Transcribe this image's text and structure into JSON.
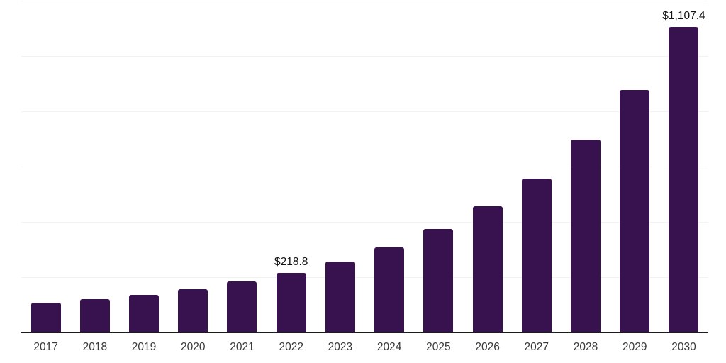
{
  "chart_data": {
    "type": "bar",
    "title": "",
    "xlabel": "",
    "ylabel": "",
    "categories": [
      "2017",
      "2018",
      "2019",
      "2020",
      "2021",
      "2022",
      "2023",
      "2024",
      "2025",
      "2026",
      "2027",
      "2028",
      "2029",
      "2030"
    ],
    "values": [
      109.4,
      122.2,
      138.3,
      158.1,
      186.2,
      218.8,
      258.7,
      310.0,
      376.6,
      458.5,
      558.5,
      699.3,
      878.7,
      1107.4
    ],
    "data_labels": [
      "",
      "",
      "",
      "",
      "",
      "$218.8",
      "",
      "",
      "",
      "",
      "",
      "",
      "",
      "$1,107.4"
    ],
    "ylim": [
      0,
      1200
    ],
    "gridline_step": 200,
    "grid": true,
    "legend_position": "none",
    "colors": {
      "bar": "#38124E",
      "axis_line": "#1C1C1C",
      "gridline": "#F2F2F2",
      "tick_label": "#3A3A3A",
      "data_label": "#111111"
    }
  }
}
